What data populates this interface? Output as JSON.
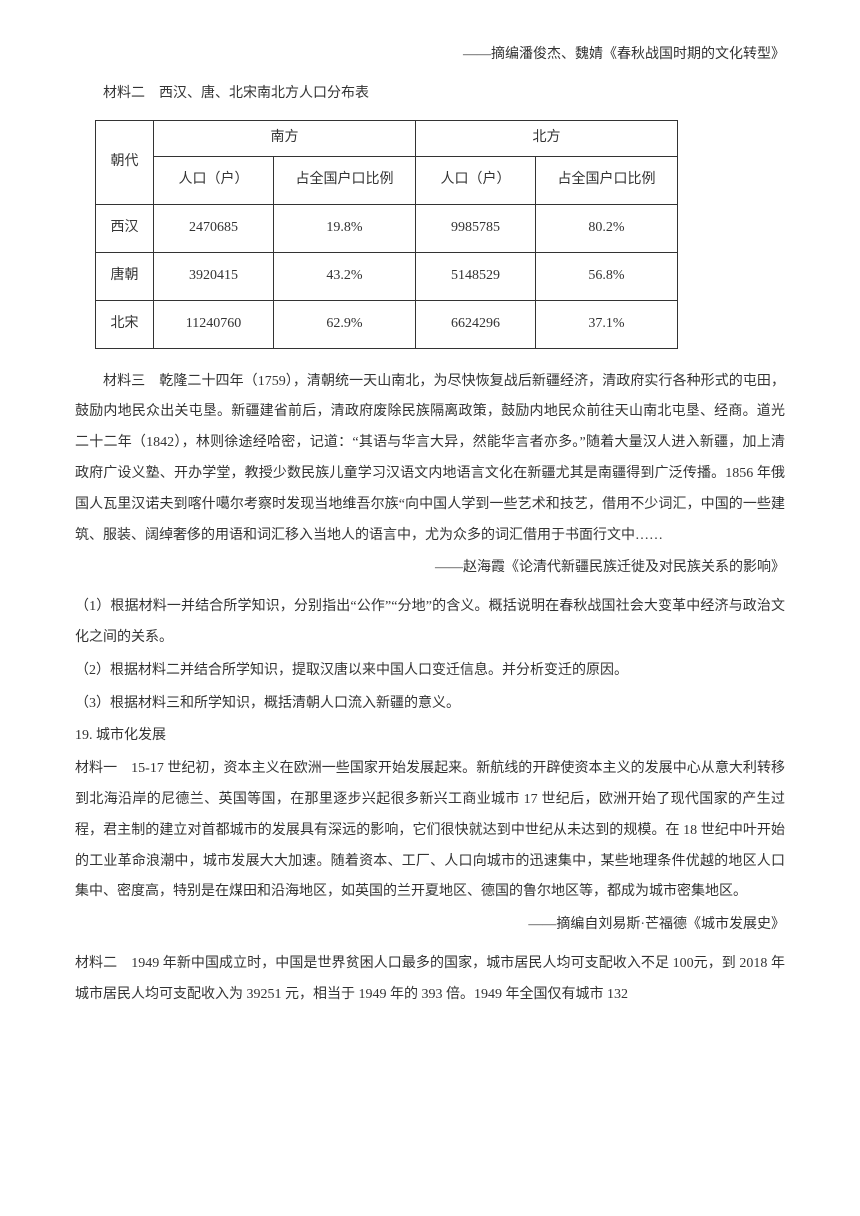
{
  "attribution_top": "——摘编潘俊杰、魏婧《春秋战国时期的文化转型》",
  "material2_title": "材料二　西汉、唐、北宋南北方人口分布表",
  "table": {
    "header_dynasty": "朝代",
    "header_south": "南方",
    "header_north": "北方",
    "header_pop": "人口（户）",
    "header_ratio": "占全国户口比例",
    "rows": [
      {
        "dynasty": "西汉",
        "south_pop": "2470685",
        "south_ratio": "19.8%",
        "north_pop": "9985785",
        "north_ratio": "80.2%"
      },
      {
        "dynasty": "唐朝",
        "south_pop": "3920415",
        "south_ratio": "43.2%",
        "north_pop": "5148529",
        "north_ratio": "56.8%"
      },
      {
        "dynasty": "北宋",
        "south_pop": "11240760",
        "south_ratio": "62.9%",
        "north_pop": "6624296",
        "north_ratio": "37.1%"
      }
    ]
  },
  "material3": "材料三　乾隆二十四年（1759），清朝统一天山南北，为尽快恢复战后新疆经济，清政府实行各种形式的屯田，鼓励内地民众出关屯垦。新疆建省前后，清政府废除民族隔离政策，鼓励内地民众前往天山南北屯垦、经商。道光二十二年（1842），林则徐途经哈密，记道：“其语与华言大异，然能华言者亦多。”随着大量汉人进入新疆，加上清政府广设义塾、开办学堂，教授少数民族儿童学习汉语文内地语言文化在新疆尤其是南疆得到广泛传播。1856 年俄国人瓦里汉诺夫到喀什噶尔考察时发现当地维吾尔族“向中国人学到一些艺术和技艺，借用不少词汇，中国的一些建筑、服装、阔绰奢侈的用语和词汇移入当地人的语言中，尤为众多的词汇借用于书面行文中……",
  "attribution_mid": "——赵海霞《论清代新疆民族迁徙及对民族关系的影响》",
  "q1": "（1）根据材料一并结合所学知识，分别指出“公作”“分地”的含义。概括说明在春秋战国社会大变革中经济与政治文化之间的关系。",
  "q2": "（2）根据材料二并结合所学知识，提取汉唐以来中国人口变迁信息。并分析变迁的原因。",
  "q3": "（3）根据材料三和所学知识，概括清朝人口流入新疆的意义。",
  "q19": "19. 城市化发展",
  "material1_b": "材料一　15-17 世纪初，资本主义在欧洲一些国家开始发展起来。新航线的开辟使资本主义的发展中心从意大利转移到北海沿岸的尼德兰、英国等国，在那里逐步兴起很多新兴工商业城市 17 世纪后，欧洲开始了现代国家的产生过程，君主制的建立对首都城市的发展具有深远的影响，它们很快就达到中世纪从未达到的规模。在 18 世纪中叶开始的工业革命浪潮中，城市发展大大加速。随着资本、工厂、人口向城市的迅速集中，某些地理条件优越的地区人口集中、密度高，特别是在煤田和沿海地区，如英国的兰开夏地区、德国的鲁尔地区等，都成为城市密集地区。",
  "attribution_bottom": "——摘编自刘易斯·芒福德《城市发展史》",
  "material2_b": "材料二　1949 年新中国成立时，中国是世界贫困人口最多的国家，城市居民人均可支配收入不足 100元，到 2018 年城市居民人均可支配收入为 39251 元，相当于 1949 年的 393 倍。1949 年全国仅有城市 132"
}
